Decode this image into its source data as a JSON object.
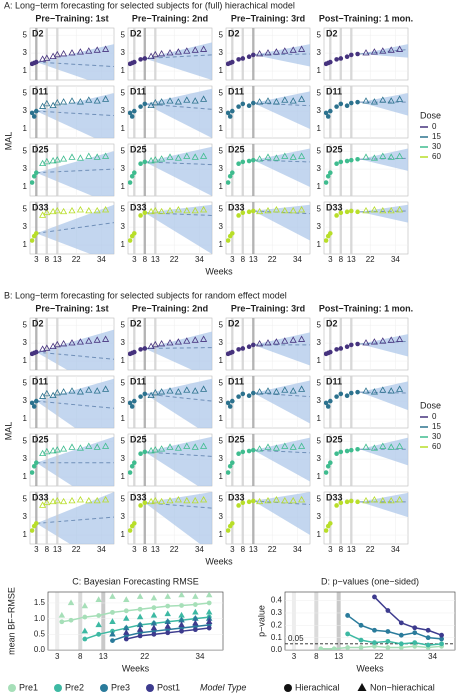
{
  "chart_data": [
    {
      "type": "forecast_grid",
      "title": "A: Long−term forecasting for selected subjects for (full) hierachical model",
      "columns": [
        "Pre−Training: 1st",
        "Pre−Training: 2nd",
        "Pre−Training: 3rd",
        "Post−Training: 1 mon."
      ],
      "cutoffs": [
        3,
        8,
        13,
        17
      ],
      "x_label": "Weeks",
      "y_label": "MAL",
      "xlim": [
        0,
        40
      ],
      "xticks": [
        3,
        8,
        13,
        22,
        34
      ],
      "ylim": [
        0,
        5.8
      ],
      "yticks": [
        1,
        3,
        5
      ],
      "x": [
        1,
        2,
        3,
        6,
        8,
        11,
        13,
        16,
        20,
        24,
        28,
        32,
        36
      ],
      "subjects": [
        {
          "name": "D2",
          "values": [
            1.8,
            1.9,
            2.0,
            2.3,
            2.4,
            2.6,
            2.8,
            2.9,
            3.0,
            3.1,
            3.2,
            3.3,
            3.4
          ]
        },
        {
          "name": "D11",
          "values": [
            2.8,
            2.4,
            3.0,
            3.5,
            3.8,
            3.6,
            3.9,
            4.0,
            4.1,
            4.0,
            4.2,
            4.1,
            4.3
          ]
        },
        {
          "name": "D25",
          "values": [
            1.5,
            2.2,
            2.6,
            3.6,
            3.8,
            3.9,
            4.0,
            4.1,
            4.3,
            4.2,
            4.4,
            4.3,
            4.4
          ]
        },
        {
          "name": "D33",
          "values": [
            1.5,
            2.0,
            2.3,
            4.3,
            4.6,
            4.7,
            4.8,
            4.7,
            4.8,
            4.9,
            4.8,
            4.8,
            4.9
          ]
        }
      ],
      "means": [
        [
          1.5,
          2.8,
          2.9,
          3.4
        ],
        [
          2.5,
          3.2,
          3.6,
          4.0
        ],
        [
          3.0,
          3.5,
          3.8,
          4.2
        ],
        [
          3.5,
          4.3,
          4.5,
          4.8
        ]
      ],
      "bands": [
        [
          [
            -1,
            4
          ],
          [
            0,
            4.2
          ],
          [
            1.5,
            4
          ],
          [
            2.5,
            4
          ]
        ],
        [
          [
            -1,
            5
          ],
          [
            0,
            5.5
          ],
          [
            1,
            5.2
          ],
          [
            2.5,
            5
          ]
        ],
        [
          [
            -1,
            5
          ],
          [
            0,
            5.5
          ],
          [
            1,
            5.3
          ],
          [
            2.8,
            5.3
          ]
        ],
        [
          [
            -1,
            5.5
          ],
          [
            0,
            5.5
          ],
          [
            1.5,
            5.5
          ],
          [
            3.5,
            5.5
          ]
        ]
      ],
      "legend_title": "Dose",
      "doses": [
        0,
        15,
        30,
        60
      ],
      "dose_colors": [
        "#46337e",
        "#2c728e",
        "#3fbc8f",
        "#b8de29"
      ]
    },
    {
      "type": "forecast_grid",
      "title": "B: Long−term forecasting for selected subjects for random effect model",
      "columns": [
        "Pre−Training: 1st",
        "Pre−Training: 2nd",
        "Pre−Training: 3rd",
        "Post−Training: 1 mon."
      ],
      "cutoffs": [
        3,
        8,
        13,
        17
      ],
      "x_label": "Weeks",
      "y_label": "MAL",
      "xlim": [
        0,
        40
      ],
      "xticks": [
        3,
        8,
        13,
        22,
        34
      ],
      "ylim": [
        0,
        5.8
      ],
      "yticks": [
        1,
        3,
        5
      ],
      "x": [
        1,
        2,
        3,
        6,
        8,
        11,
        13,
        16,
        20,
        24,
        28,
        32,
        36
      ],
      "subjects": [
        {
          "name": "D2",
          "values": [
            1.8,
            1.9,
            2.0,
            2.3,
            2.4,
            2.6,
            2.8,
            2.9,
            3.0,
            3.1,
            3.2,
            3.3,
            3.4
          ]
        },
        {
          "name": "D11",
          "values": [
            2.8,
            2.4,
            3.0,
            3.5,
            3.8,
            3.6,
            3.9,
            4.0,
            4.1,
            4.0,
            4.2,
            4.1,
            4.3
          ]
        },
        {
          "name": "D25",
          "values": [
            1.5,
            2.2,
            2.6,
            3.6,
            3.8,
            3.9,
            4.0,
            4.1,
            4.3,
            4.2,
            4.4,
            4.3,
            4.4
          ]
        },
        {
          "name": "D33",
          "values": [
            1.5,
            2.0,
            2.3,
            4.3,
            4.6,
            4.7,
            4.8,
            4.7,
            4.8,
            4.9,
            4.8,
            4.8,
            4.9
          ]
        }
      ],
      "means": [
        [
          1.2,
          2.5,
          2.8,
          3.2
        ],
        [
          2.2,
          3.0,
          3.5,
          3.9
        ],
        [
          2.6,
          3.3,
          3.7,
          4.1
        ],
        [
          3.0,
          4.0,
          4.4,
          4.7
        ]
      ],
      "bands": [
        [
          [
            -3,
            4.5
          ],
          [
            -1,
            4.3
          ],
          [
            0.5,
            4.2
          ],
          [
            1.5,
            4
          ]
        ],
        [
          [
            -3,
            5.5
          ],
          [
            -1,
            5.5
          ],
          [
            0.5,
            5.3
          ],
          [
            2,
            5.2
          ]
        ],
        [
          [
            -3,
            5.5
          ],
          [
            -1,
            5.5
          ],
          [
            0.5,
            5.4
          ],
          [
            2.3,
            5.4
          ]
        ],
        [
          [
            -3,
            5.8
          ],
          [
            -1,
            5.8
          ],
          [
            1,
            5.8
          ],
          [
            3,
            5.7
          ]
        ]
      ],
      "legend_title": "Dose",
      "doses": [
        0,
        15,
        30,
        60
      ],
      "dose_colors": [
        "#46337e",
        "#2c728e",
        "#3fbc8f",
        "#b8de29"
      ]
    },
    {
      "type": "line",
      "title": "C: Bayesian Forecasting RMSE",
      "x_label": "Weeks",
      "y_label": "mean BF−RMSE",
      "xlim": [
        1,
        39
      ],
      "xticks": [
        3,
        8,
        13,
        22,
        34
      ],
      "ylim": [
        0,
        1.85
      ],
      "yticks": [
        {
          "value": 0,
          "label": "0.0"
        },
        {
          "value": 0.5,
          "label": "0.5"
        },
        {
          "value": 1,
          "label": "1.0"
        },
        {
          "value": 1.5,
          "label": "1.5"
        }
      ],
      "x": [
        4,
        6,
        9,
        12,
        15,
        18,
        21,
        24,
        27,
        30,
        33,
        36
      ],
      "series": [
        {
          "name": "Pre1",
          "color": "#a6dfb8",
          "values": [
            0.9,
            0.95,
            1.05,
            1.1,
            1.2,
            1.25,
            1.3,
            1.35,
            1.4,
            1.42,
            1.45,
            1.5
          ],
          "nonhier_values": [
            1.1,
            1.5,
            1.4,
            1.6,
            1.7,
            1.6,
            1.7,
            1.65,
            1.7,
            1.75,
            1.7,
            1.75
          ]
        },
        {
          "name": "Pre2",
          "color": "#3db9a3",
          "values": [
            null,
            null,
            0.35,
            0.5,
            0.6,
            0.7,
            0.8,
            0.85,
            0.9,
            0.95,
            1.0,
            1.05
          ],
          "nonhier_values": [
            null,
            null,
            0.6,
            0.8,
            0.9,
            1.0,
            1.05,
            1.1,
            1.15,
            1.1,
            1.2,
            1.2
          ]
        },
        {
          "name": "Pre3",
          "color": "#2a7b9b",
          "values": [
            null,
            null,
            null,
            null,
            0.3,
            0.45,
            0.55,
            0.6,
            0.65,
            0.7,
            0.75,
            0.8
          ],
          "nonhier_values": [
            null,
            null,
            null,
            null,
            0.5,
            0.7,
            0.8,
            0.85,
            0.9,
            0.95,
            1.0,
            1.0
          ]
        },
        {
          "name": "Post1",
          "color": "#3d3b8e",
          "values": [
            null,
            null,
            null,
            null,
            null,
            0.35,
            0.45,
            0.5,
            0.55,
            0.6,
            0.65,
            0.7
          ],
          "nonhier_values": [
            null,
            null,
            null,
            null,
            null,
            0.55,
            0.65,
            0.7,
            0.75,
            0.8,
            0.85,
            0.9
          ]
        }
      ],
      "legend_title": "Model Type",
      "model_types": [
        "Hierachical",
        "Non−hierachical"
      ]
    },
    {
      "type": "line",
      "title": "D: p−values (one−sided)",
      "x_label": "Weeks",
      "y_label": "p−value",
      "xlim": [
        1,
        39
      ],
      "xticks": [
        3,
        8,
        13,
        22,
        34
      ],
      "ylim": [
        0,
        0.47
      ],
      "yticks": [
        {
          "value": 0,
          "label": "0.0"
        },
        {
          "value": 0.1,
          "label": "0.1"
        },
        {
          "value": 0.2,
          "label": "0.2"
        },
        {
          "value": 0.3,
          "label": "0.3"
        },
        {
          "value": 0.4,
          "label": "0.4"
        }
      ],
      "threshold": 0.05,
      "x": [
        4,
        6,
        9,
        12,
        15,
        18,
        21,
        24,
        27,
        30,
        33,
        36
      ],
      "series": [
        {
          "values": [
            null,
            null,
            0.01,
            0.01,
            0.02,
            0.02,
            0.03,
            0.02,
            0.02,
            0.03,
            0.02,
            0.03
          ]
        },
        {
          "values": [
            null,
            null,
            null,
            null,
            0.13,
            0.08,
            0.06,
            0.07,
            0.05,
            0.06,
            0.04,
            0.05
          ]
        },
        {
          "values": [
            null,
            null,
            null,
            null,
            0.28,
            0.2,
            0.16,
            0.15,
            0.12,
            0.14,
            0.1,
            0.09
          ]
        },
        {
          "values": [
            null,
            null,
            null,
            null,
            null,
            null,
            0.43,
            0.32,
            0.22,
            0.18,
            0.16,
            0.12
          ]
        }
      ]
    }
  ]
}
